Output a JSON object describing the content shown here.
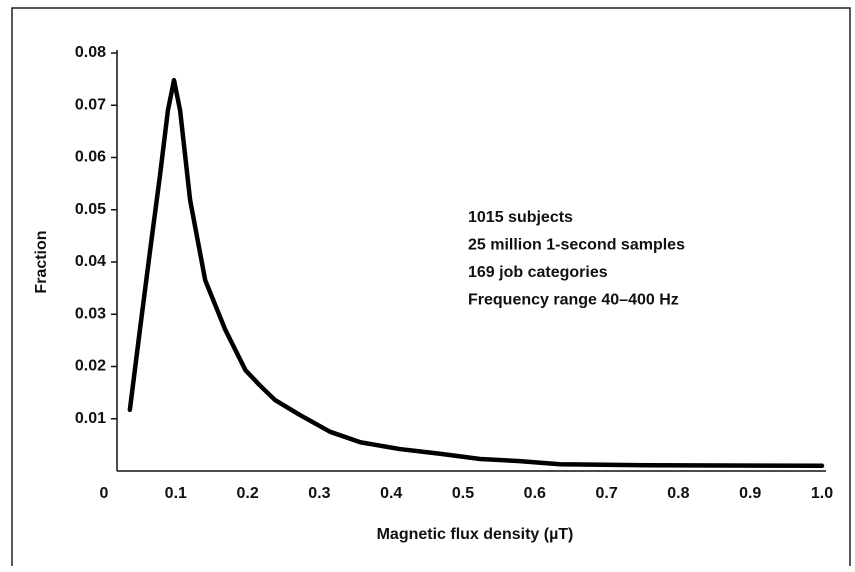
{
  "chart_data": {
    "type": "line",
    "xlabel": "Magnetic flux density (µT)",
    "ylabel": "Fraction",
    "annotations": [
      "1015 subjects",
      "25 million 1-second samples",
      "169 job categories",
      "Frequency range 40–400 Hz"
    ],
    "x": [
      0.036,
      0.05,
      0.064,
      0.078,
      0.089,
      0.0975,
      0.106,
      0.12,
      0.141,
      0.169,
      0.197,
      0.217,
      0.238,
      0.273,
      0.315,
      0.357,
      0.412,
      0.468,
      0.524,
      0.579,
      0.635,
      0.76,
      1.0
    ],
    "series": [
      {
        "color": "#000000",
        "values": [
          0.0117,
          0.027,
          0.042,
          0.0566,
          0.069,
          0.0748,
          0.069,
          0.0518,
          0.0365,
          0.027,
          0.0193,
          0.0164,
          0.0136,
          0.0107,
          0.0075,
          0.0055,
          0.0042,
          0.0033,
          0.0023,
          0.0019,
          0.0013,
          0.0011,
          0.001
        ]
      }
    ],
    "xlim": [
      0,
      1
    ],
    "ylim": [
      0,
      0.08
    ],
    "xticks": [
      0,
      0.1,
      0.2,
      0.3,
      0.4,
      0.5,
      0.6,
      0.7,
      0.8,
      0.9,
      {
        "value": 1,
        "label": "1.0"
      }
    ],
    "yticks": [
      0.01,
      0.02,
      0.03,
      0.04,
      0.05,
      0.06,
      0.07,
      0.08
    ]
  }
}
